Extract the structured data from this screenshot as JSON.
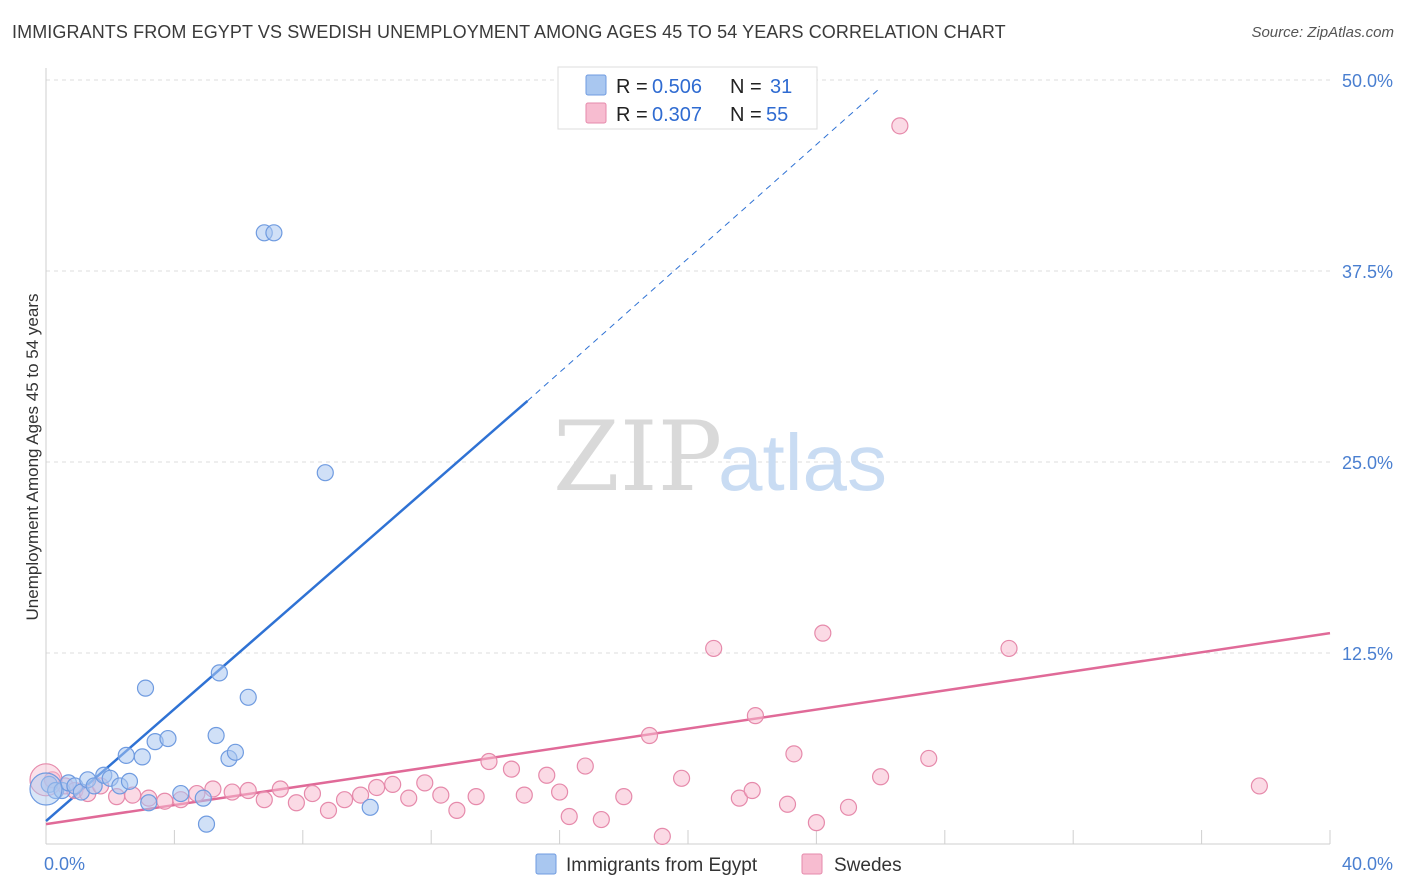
{
  "title": "IMMIGRANTS FROM EGYPT VS SWEDISH UNEMPLOYMENT AMONG AGES 45 TO 54 YEARS CORRELATION CHART",
  "source": "Source: ZipAtlas.com",
  "watermark": {
    "zip": "ZIP",
    "atlas": "atlas"
  },
  "legend": {
    "r_label": "R =",
    "n_label": "N =",
    "entries": [
      {
        "r": "0.506",
        "n": "31",
        "color": "#a9c7f0",
        "border": "#6f9be0"
      },
      {
        "r": "0.307",
        "n": "55",
        "color": "#f7bcd0",
        "border": "#e68aab"
      }
    ]
  },
  "chart_data": {
    "type": "scatter",
    "xlabel": "",
    "ylabel": "Unemployment Among Ages 45 to 54 years",
    "xlim": [
      0,
      40
    ],
    "ylim": [
      0,
      50
    ],
    "x_tick_labels": [
      "0.0%",
      "40.0%"
    ],
    "y_ticks": [
      12.5,
      25,
      37.5,
      50
    ],
    "y_tick_labels": [
      "12.5%",
      "25.0%",
      "37.5%",
      "50.0%"
    ],
    "grid": true,
    "series": [
      {
        "name": "Immigrants from Egypt",
        "color": "#a9c7f0",
        "stroke": "#6f9be0",
        "line_color": "#2f72d4",
        "trend": {
          "x0": 0,
          "y0": 1.5,
          "x1": 15,
          "y1": 29.0,
          "dash_to_x": 26,
          "dash_to_y": 49.5
        },
        "points": [
          [
            0.1,
            3.9
          ],
          [
            0.3,
            3.5
          ],
          [
            0.5,
            3.5
          ],
          [
            0.7,
            4.0
          ],
          [
            0.9,
            3.8
          ],
          [
            1.1,
            3.4
          ],
          [
            1.3,
            4.2
          ],
          [
            1.5,
            3.8
          ],
          [
            1.8,
            4.5
          ],
          [
            2.0,
            4.3
          ],
          [
            2.3,
            3.8
          ],
          [
            2.6,
            4.1
          ],
          [
            2.5,
            5.8
          ],
          [
            3.0,
            5.7
          ],
          [
            3.1,
            10.2
          ],
          [
            3.4,
            6.7
          ],
          [
            3.8,
            6.9
          ],
          [
            3.2,
            2.7
          ],
          [
            4.2,
            3.3
          ],
          [
            4.9,
            3.0
          ],
          [
            5.0,
            1.3
          ],
          [
            5.3,
            7.1
          ],
          [
            5.7,
            5.6
          ],
          [
            5.9,
            6.0
          ],
          [
            5.4,
            11.2
          ],
          [
            6.3,
            9.6
          ],
          [
            6.8,
            40.0
          ],
          [
            7.1,
            40.0
          ],
          [
            8.7,
            24.3
          ],
          [
            10.1,
            2.4
          ],
          [
            0.0,
            3.6
          ]
        ]
      },
      {
        "name": "Swedes",
        "color": "#f7bcd0",
        "stroke": "#e68aab",
        "line_color": "#e06a98",
        "trend": {
          "x0": 0,
          "y0": 1.3,
          "x1": 40,
          "y1": 13.8
        },
        "points": [
          [
            0.2,
            4.2
          ],
          [
            0.6,
            3.8
          ],
          [
            0.9,
            3.5
          ],
          [
            1.3,
            3.3
          ],
          [
            1.7,
            3.8
          ],
          [
            2.2,
            3.1
          ],
          [
            2.7,
            3.2
          ],
          [
            3.2,
            3.0
          ],
          [
            3.7,
            2.8
          ],
          [
            4.2,
            2.9
          ],
          [
            4.7,
            3.3
          ],
          [
            5.2,
            3.6
          ],
          [
            5.8,
            3.4
          ],
          [
            6.3,
            3.5
          ],
          [
            6.8,
            2.9
          ],
          [
            7.3,
            3.6
          ],
          [
            7.8,
            2.7
          ],
          [
            8.3,
            3.3
          ],
          [
            8.8,
            2.2
          ],
          [
            9.3,
            2.9
          ],
          [
            9.8,
            3.2
          ],
          [
            10.3,
            3.7
          ],
          [
            10.8,
            3.9
          ],
          [
            11.3,
            3.0
          ],
          [
            11.8,
            4.0
          ],
          [
            12.3,
            3.2
          ],
          [
            12.8,
            2.2
          ],
          [
            13.4,
            3.1
          ],
          [
            13.8,
            5.4
          ],
          [
            14.5,
            4.9
          ],
          [
            14.9,
            3.2
          ],
          [
            15.6,
            4.5
          ],
          [
            16.0,
            3.4
          ],
          [
            16.3,
            1.8
          ],
          [
            16.8,
            5.1
          ],
          [
            17.3,
            1.6
          ],
          [
            18.0,
            3.1
          ],
          [
            18.8,
            7.1
          ],
          [
            19.2,
            0.5
          ],
          [
            19.8,
            4.3
          ],
          [
            20.8,
            12.8
          ],
          [
            21.6,
            3.0
          ],
          [
            22.0,
            3.5
          ],
          [
            22.1,
            8.4
          ],
          [
            23.1,
            2.6
          ],
          [
            23.3,
            5.9
          ],
          [
            24.0,
            1.4
          ],
          [
            24.2,
            13.8
          ],
          [
            25.0,
            2.4
          ],
          [
            26.0,
            4.4
          ],
          [
            26.6,
            47.0
          ],
          [
            27.5,
            5.6
          ],
          [
            30.0,
            12.8
          ],
          [
            37.8,
            3.8
          ],
          [
            0.0,
            4.2
          ]
        ]
      }
    ]
  }
}
